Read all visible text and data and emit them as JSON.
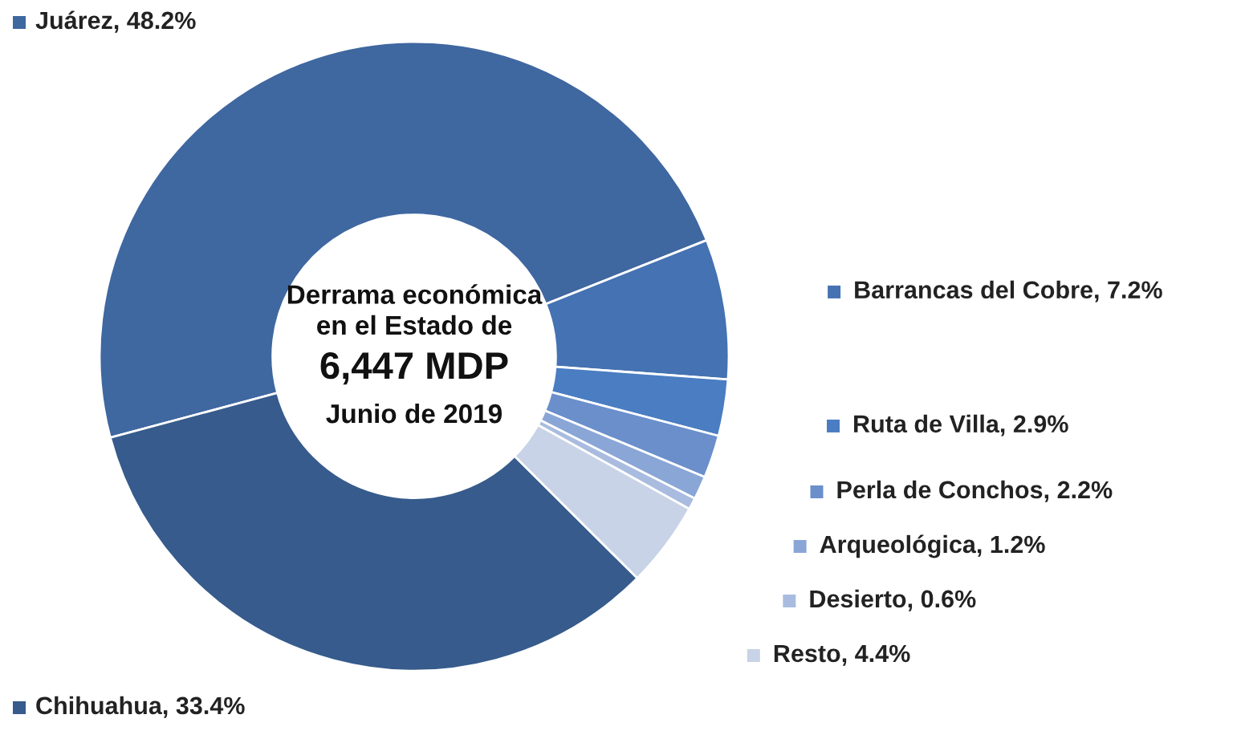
{
  "chart_data": {
    "type": "donut",
    "categories": [
      "Juárez",
      "Barrancas del Cobre",
      "Ruta de Villa",
      "Perla de Conchos",
      "Arqueológica",
      "Desierto",
      "Resto",
      "Chihuahua"
    ],
    "values": [
      48.2,
      7.2,
      2.9,
      2.2,
      1.2,
      0.6,
      4.4,
      33.4
    ],
    "value_labels": [
      "48.2%",
      "7.2%",
      "2.9%",
      "2.2%",
      "1.2%",
      "0.6%",
      "4.4%",
      "33.4%"
    ],
    "colors": [
      "#3f67a0",
      "#4472b2",
      "#4a7dc2",
      "#6a8fcb",
      "#8aa6d6",
      "#a9bcdf",
      "#c8d3e7",
      "#365b8c"
    ],
    "annotations": [
      "Derrama económica\nen el Estado de",
      "6,447 MDP",
      "Junio de 2019"
    ],
    "legend": "right"
  }
}
